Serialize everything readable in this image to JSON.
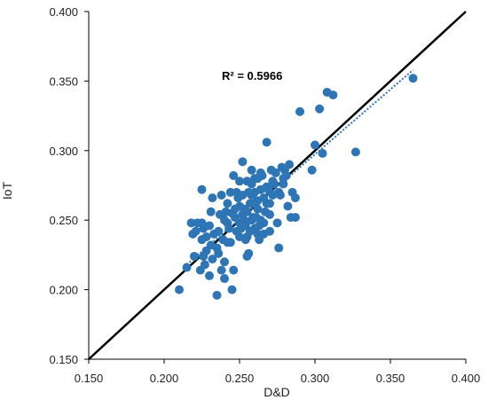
{
  "chart_data": {
    "type": "scatter",
    "title": "",
    "xlabel": "D&D",
    "ylabel": "IoT",
    "xlim": [
      0.15,
      0.4
    ],
    "ylim": [
      0.15,
      0.4
    ],
    "x_ticks": [
      "0.150",
      "0.200",
      "0.250",
      "0.300",
      "0.350",
      "0.400"
    ],
    "y_ticks": [
      "0.150",
      "0.200",
      "0.250",
      "0.300",
      "0.350",
      "0.400"
    ],
    "grid": false,
    "legend": "none",
    "annotation": "R² = 0.5966",
    "colors": {
      "points": "#2e75b6",
      "trendline": "#2e75b6",
      "reference_line": "#000000",
      "axes": "#000000"
    },
    "reference_line": {
      "name": "",
      "style": "solid",
      "x": [
        0.15,
        0.4
      ],
      "y": [
        0.15,
        0.4
      ]
    },
    "trendline": {
      "name": "",
      "style": "dotted",
      "x": [
        0.215,
        0.365
      ],
      "y": [
        0.218,
        0.358
      ]
    },
    "series": [
      {
        "name": "",
        "points": [
          [
            0.21,
            0.2
          ],
          [
            0.215,
            0.216
          ],
          [
            0.22,
            0.224
          ],
          [
            0.225,
            0.236
          ],
          [
            0.226,
            0.224
          ],
          [
            0.23,
            0.21
          ],
          [
            0.232,
            0.222
          ],
          [
            0.228,
            0.238
          ],
          [
            0.218,
            0.248
          ],
          [
            0.222,
            0.248
          ],
          [
            0.228,
            0.228
          ],
          [
            0.235,
            0.196
          ],
          [
            0.238,
            0.214
          ],
          [
            0.236,
            0.226
          ],
          [
            0.24,
            0.208
          ],
          [
            0.24,
            0.22
          ],
          [
            0.245,
            0.2
          ],
          [
            0.246,
            0.214
          ],
          [
            0.242,
            0.234
          ],
          [
            0.242,
            0.248
          ],
          [
            0.245,
            0.255
          ],
          [
            0.25,
            0.238
          ],
          [
            0.248,
            0.242
          ],
          [
            0.252,
            0.254
          ],
          [
            0.254,
            0.246
          ],
          [
            0.256,
            0.226
          ],
          [
            0.255,
            0.224
          ],
          [
            0.255,
            0.238
          ],
          [
            0.258,
            0.25
          ],
          [
            0.26,
            0.262
          ],
          [
            0.262,
            0.258
          ],
          [
            0.26,
            0.244
          ],
          [
            0.264,
            0.25
          ],
          [
            0.266,
            0.266
          ],
          [
            0.268,
            0.274
          ],
          [
            0.27,
            0.262
          ],
          [
            0.272,
            0.278
          ],
          [
            0.274,
            0.284
          ],
          [
            0.276,
            0.27
          ],
          [
            0.278,
            0.288
          ],
          [
            0.28,
            0.286
          ],
          [
            0.282,
            0.26
          ],
          [
            0.284,
            0.252
          ],
          [
            0.285,
            0.27
          ],
          [
            0.276,
            0.23
          ],
          [
            0.275,
            0.248
          ],
          [
            0.27,
            0.242
          ],
          [
            0.266,
            0.248
          ],
          [
            0.268,
            0.306
          ],
          [
            0.252,
            0.292
          ],
          [
            0.246,
            0.282
          ],
          [
            0.238,
            0.268
          ],
          [
            0.232,
            0.266
          ],
          [
            0.225,
            0.272
          ],
          [
            0.225,
            0.248
          ],
          [
            0.25,
            0.26
          ],
          [
            0.252,
            0.268
          ],
          [
            0.256,
            0.27
          ],
          [
            0.258,
            0.276
          ],
          [
            0.262,
            0.28
          ],
          [
            0.264,
            0.284
          ],
          [
            0.258,
            0.286
          ],
          [
            0.255,
            0.278
          ],
          [
            0.248,
            0.27
          ],
          [
            0.244,
            0.27
          ],
          [
            0.242,
            0.262
          ],
          [
            0.24,
            0.25
          ],
          [
            0.236,
            0.242
          ],
          [
            0.233,
            0.24
          ],
          [
            0.23,
            0.246
          ],
          [
            0.25,
            0.248
          ],
          [
            0.254,
            0.236
          ],
          [
            0.262,
            0.24
          ],
          [
            0.266,
            0.24
          ],
          [
            0.27,
            0.254
          ],
          [
            0.272,
            0.268
          ],
          [
            0.279,
            0.28
          ],
          [
            0.281,
            0.282
          ],
          [
            0.283,
            0.29
          ],
          [
            0.287,
            0.266
          ],
          [
            0.287,
            0.252
          ],
          [
            0.29,
            0.328
          ],
          [
            0.298,
            0.286
          ],
          [
            0.3,
            0.304
          ],
          [
            0.303,
            0.33
          ],
          [
            0.305,
            0.298
          ],
          [
            0.308,
            0.342
          ],
          [
            0.312,
            0.34
          ],
          [
            0.327,
            0.299
          ],
          [
            0.365,
            0.352
          ],
          [
            0.26,
            0.27
          ],
          [
            0.262,
            0.264
          ],
          [
            0.264,
            0.272
          ],
          [
            0.257,
            0.262
          ],
          [
            0.259,
            0.252
          ],
          [
            0.253,
            0.25
          ],
          [
            0.251,
            0.244
          ],
          [
            0.247,
            0.252
          ],
          [
            0.243,
            0.244
          ],
          [
            0.239,
            0.236
          ],
          [
            0.235,
            0.23
          ],
          [
            0.231,
            0.232
          ],
          [
            0.227,
            0.218
          ],
          [
            0.224,
            0.214
          ],
          [
            0.219,
            0.24
          ],
          [
            0.221,
            0.242
          ],
          [
            0.226,
            0.244
          ],
          [
            0.231,
            0.256
          ],
          [
            0.237,
            0.254
          ],
          [
            0.241,
            0.256
          ],
          [
            0.249,
            0.266
          ],
          [
            0.255,
            0.256
          ],
          [
            0.261,
            0.252
          ],
          [
            0.263,
            0.246
          ],
          [
            0.267,
            0.256
          ],
          [
            0.269,
            0.272
          ],
          [
            0.271,
            0.286
          ],
          [
            0.273,
            0.276
          ],
          [
            0.277,
            0.268
          ],
          [
            0.279,
            0.276
          ],
          [
            0.258,
            0.268
          ],
          [
            0.253,
            0.258
          ],
          [
            0.247,
            0.258
          ],
          [
            0.265,
            0.282
          ],
          [
            0.26,
            0.28
          ],
          [
            0.244,
            0.234
          ],
          [
            0.25,
            0.278
          ],
          [
            0.257,
            0.242
          ],
          [
            0.263,
            0.236
          ],
          [
            0.268,
            0.262
          ]
        ]
      }
    ]
  }
}
